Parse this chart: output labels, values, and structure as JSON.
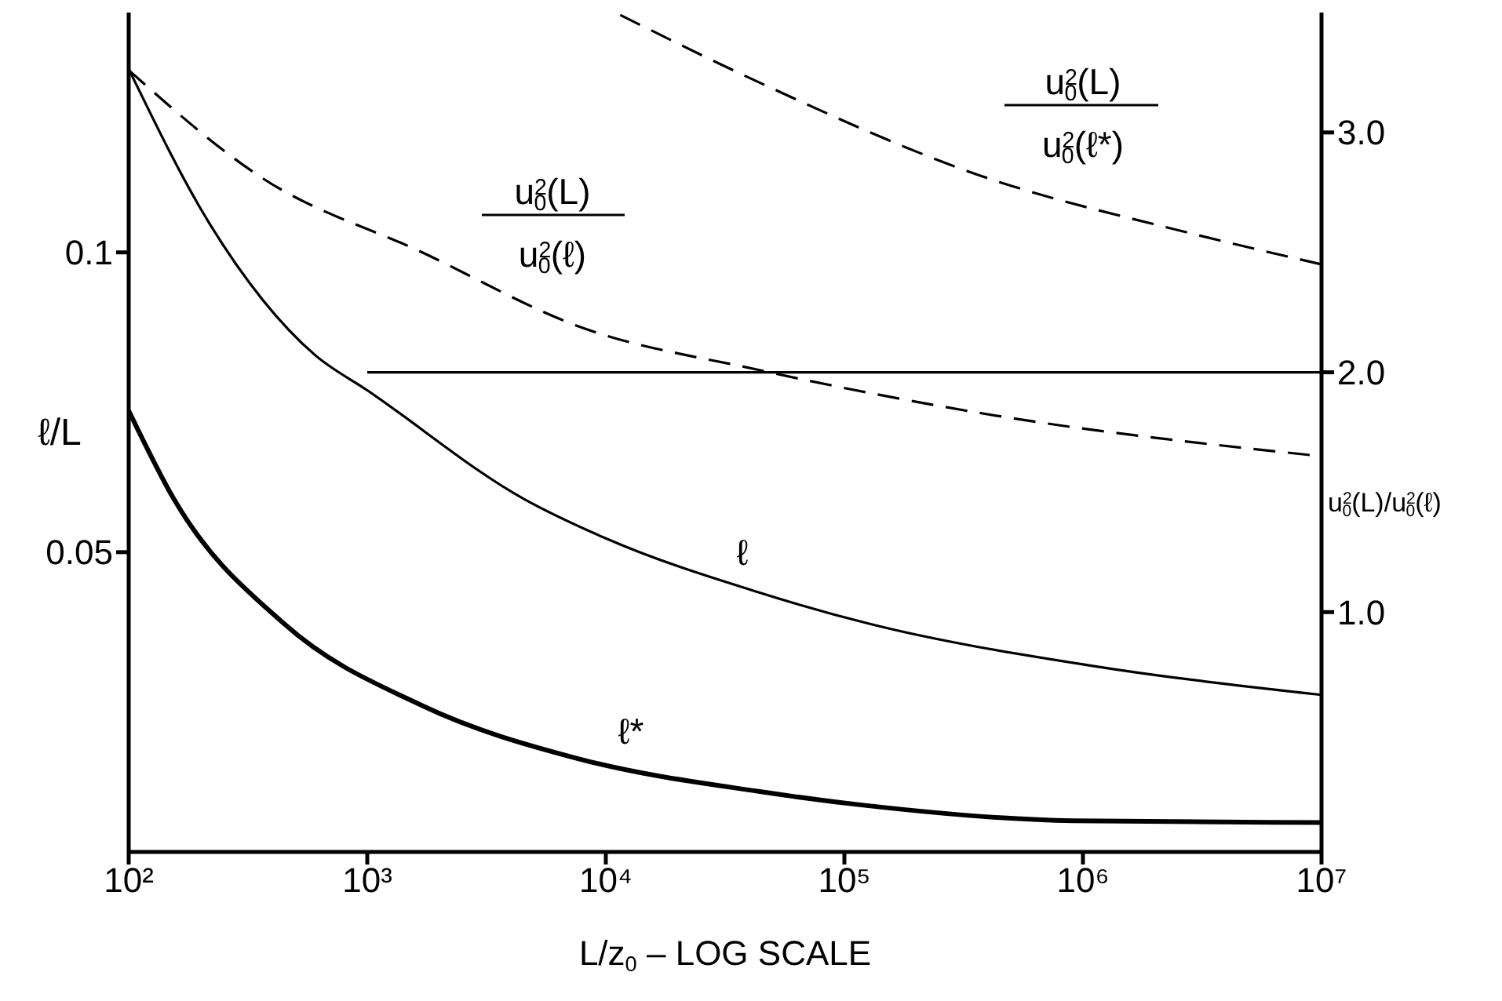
{
  "chart_data": {
    "type": "line",
    "xlabel": "L/z$_{0}$ – LOG SCALE",
    "ylabel": "ℓ/L",
    "y2label": "u$^{2}$$_{0}$(L)/u$^{2}$$_{0}$(ℓ)",
    "log": "x",
    "xlim": [
      100,
      10000000
    ],
    "xticks": [
      {
        "value": 100,
        "label": "10²"
      },
      {
        "value": 1000,
        "label": "10³"
      },
      {
        "value": 10000,
        "label": "10⁴"
      },
      {
        "value": 100000,
        "label": "10⁵"
      },
      {
        "value": 1000000,
        "label": "10⁶"
      },
      {
        "value": 10000000,
        "label": "10⁷"
      }
    ],
    "ylim": [
      0,
      0.14
    ],
    "yticks": [
      0.05,
      0.1
    ],
    "y2lim": [
      0,
      3.5
    ],
    "y2ticks": [
      {
        "value": 1,
        "label": "1.0"
      },
      {
        "value": 2,
        "label": "2.0"
      },
      {
        "value": 3,
        "label": "3.0"
      }
    ],
    "marker": "none",
    "series": [
      {
        "color": "#000000",
        "line_style": "solid",
        "x": [
          100,
          219,
          603,
          1000,
          4570,
          10000,
          43650,
          125900,
          1071500,
          10000000
        ],
        "values": [
          0.1306,
          0.1047,
          0.0829,
          0.077,
          0.0588,
          0.0523,
          0.0433,
          0.0381,
          0.0311,
          0.0262
        ]
      },
      {
        "color": "#000000",
        "line_style": "solid",
        "x": [
          100,
          155,
          447,
          1700,
          7760,
          43650,
          120000,
          912000,
          10000000
        ],
        "values": [
          0.0736,
          0.0588,
          0.0381,
          0.0244,
          0.0155,
          0.0101,
          0.0078,
          0.0052,
          0.0049
        ]
      },
      {
        "color": "#000000",
        "line_style": "dashed",
        "axis": "y2",
        "x": [
          100,
          363,
          1700,
          7760,
          43650,
          371500,
          10000000
        ],
        "values": [
          3.26,
          2.81,
          2.5,
          2.19,
          2.01,
          1.83,
          1.65
        ]
      },
      {
        "color": "#000000",
        "line_style": "dashed",
        "axis": "y2",
        "x": [
          11500,
          43650,
          371500,
          2818000,
          10000000
        ],
        "values": [
          3.49,
          3.21,
          2.82,
          2.58,
          2.45
        ]
      },
      {
        "color": "#000000",
        "line_style": "solid",
        "axis": "y2",
        "x": [
          1000,
          10000000
        ],
        "values": [
          2,
          2
        ]
      }
    ],
    "annotations": [
      "u$^{2}$$_{0}$(L)",
      "u$^{2}$$_{0}$(ℓ)",
      "u$^{2}$$_{0}$(L)",
      "u$^{2}$$_{0}$(ℓ*)",
      "ℓ",
      "ℓ*"
    ]
  }
}
